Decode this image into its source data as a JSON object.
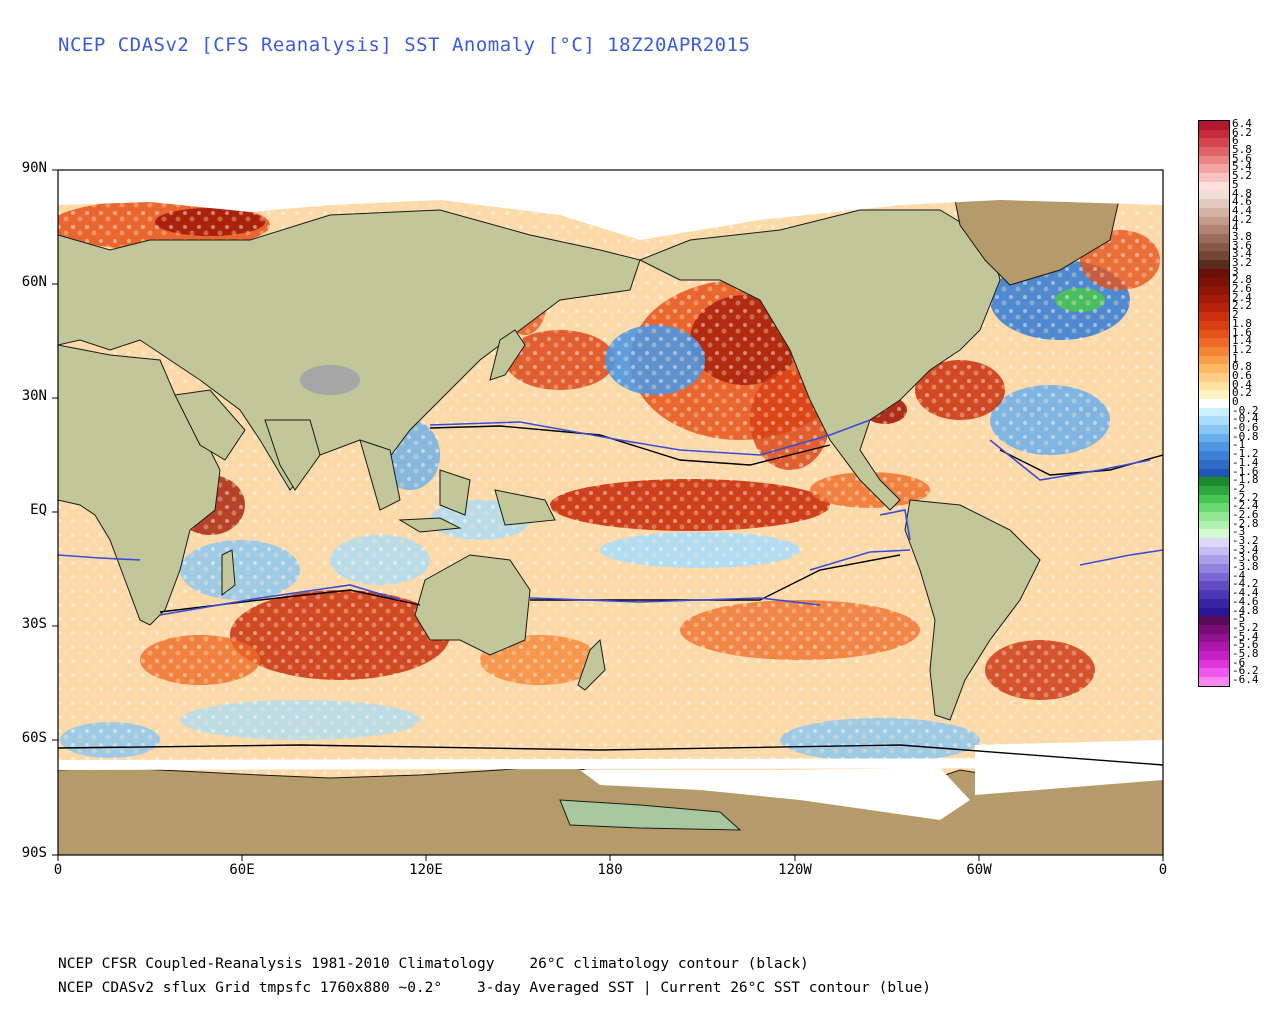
{
  "title": "NCEP CDASv2 [CFS Reanalysis] SST Anomaly [°C] 18Z20APR2015",
  "axes": {
    "y_ticks": [
      "90N",
      "60N",
      "30N",
      "EQ",
      "30S",
      "60S",
      "90S"
    ],
    "x_ticks": [
      "0",
      "60E",
      "120E",
      "180",
      "120W",
      "60W",
      "0"
    ]
  },
  "colorbar": {
    "labels": [
      "6.4",
      "6.2",
      "6",
      "5.8",
      "5.6",
      "5.4",
      "5.2",
      "5",
      "4.8",
      "4.6",
      "4.4",
      "4.2",
      "4",
      "3.8",
      "3.6",
      "3.4",
      "3.2",
      "3",
      "2.8",
      "2.6",
      "2.4",
      "2.2",
      "2",
      "1.8",
      "1.6",
      "1.4",
      "1.2",
      "1",
      "0.8",
      "0.6",
      "0.4",
      "0.2",
      "0",
      "-0.2",
      "-0.4",
      "-0.6",
      "-0.8",
      "-1",
      "-1.2",
      "-1.4",
      "-1.6",
      "-1.8",
      "-2",
      "-2.2",
      "-2.4",
      "-2.6",
      "-2.8",
      "-3",
      "-3.2",
      "-3.4",
      "-3.6",
      "-3.8",
      "-4",
      "-4.2",
      "-4.4",
      "-4.6",
      "-4.8",
      "-5",
      "-5.2",
      "-5.4",
      "-5.6",
      "-5.8",
      "-6",
      "-6.2",
      "-6.4"
    ],
    "colors": [
      "#b2182b",
      "#c62a3a",
      "#d6454f",
      "#e06468",
      "#ea8585",
      "#f2a3a3",
      "#f8c2c2",
      "#fde0dc",
      "#f1dfd7",
      "#e2c9bd",
      "#d3b1a3",
      "#c49a8a",
      "#b18372",
      "#9c6c5c",
      "#875747",
      "#724434",
      "#5c2b1f",
      "#6b0f0a",
      "#7d1108",
      "#8f1508",
      "#a41b08",
      "#b72308",
      "#c92f0c",
      "#d83e12",
      "#e5521a",
      "#ef6a26",
      "#f58436",
      "#fa9e4a",
      "#fdb865",
      "#fecf82",
      "#fee3a0",
      "#fff2c2",
      "#ffffff",
      "#c9eefc",
      "#a8dcf8",
      "#87c6f2",
      "#68aeea",
      "#4f96e0",
      "#3c7fd4",
      "#2e6ac6",
      "#2256b6",
      "#1a8a2a",
      "#2ea83c",
      "#48c454",
      "#6ad870",
      "#8ee690",
      "#b2f0b0",
      "#d4f8d0",
      "#dcd8f8",
      "#c4bcf2",
      "#ab9eea",
      "#9282e0",
      "#7a66d4",
      "#624cc6",
      "#4c36b6",
      "#3a24a6",
      "#2a1694",
      "#5a0a5a",
      "#760e76",
      "#921292",
      "#ac18ac",
      "#c620c6",
      "#de34de",
      "#ee58ee",
      "#f888f0"
    ]
  },
  "footer": {
    "line1_left": "NCEP CFSR Coupled-Reanalysis 1981-2010 Climatology",
    "line1_right": "26°C climatology contour (black)",
    "line2_left": "NCEP CDASv2 sflux Grid tmpsfc 1760x880 ~0.2°",
    "line2_right": "3-day Averaged SST | Current 26°C SST contour (blue)"
  }
}
